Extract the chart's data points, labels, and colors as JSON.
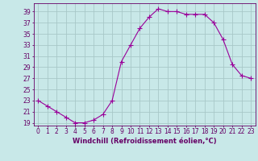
{
  "x": [
    0,
    1,
    2,
    3,
    4,
    5,
    6,
    7,
    8,
    9,
    10,
    11,
    12,
    13,
    14,
    15,
    16,
    17,
    18,
    19,
    20,
    21,
    22,
    23
  ],
  "y": [
    23,
    22,
    21,
    20,
    19,
    19,
    19.5,
    20.5,
    23,
    30,
    33,
    36,
    38,
    39.5,
    39,
    39,
    38.5,
    38.5,
    38.5,
    37,
    34,
    29.5,
    27.5,
    27
  ],
  "line_color": "#990099",
  "marker": "+",
  "markersize": 4,
  "linewidth": 0.8,
  "xlabel": "Windchill (Refroidissement éolien,°C)",
  "xlabel_fontsize": 6,
  "ylabel_ticks": [
    19,
    21,
    23,
    25,
    27,
    29,
    31,
    33,
    35,
    37,
    39
  ],
  "ylim": [
    18.5,
    40.5
  ],
  "xlim": [
    -0.5,
    23.5
  ],
  "background_color": "#c8e8e8",
  "grid_color": "#a8c8c8",
  "tick_color": "#660066",
  "tick_fontsize": 5.5,
  "xtick_labels": [
    "0",
    "1",
    "2",
    "3",
    "4",
    "5",
    "6",
    "7",
    "8",
    "9",
    "10",
    "11",
    "12",
    "13",
    "14",
    "15",
    "16",
    "17",
    "18",
    "19",
    "20",
    "21",
    "22",
    "23"
  ]
}
